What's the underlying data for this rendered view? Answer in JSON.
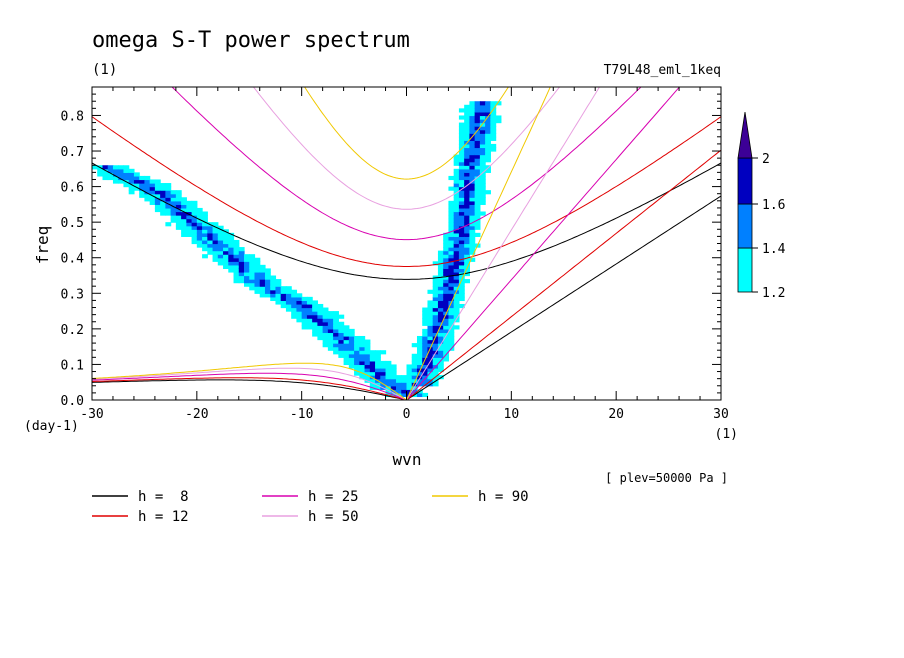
{
  "chart_data": {
    "type": "heatmap",
    "title": "omega S-T power spectrum",
    "subtitle": "(1)",
    "run_label": "T79L48_eml_1keq",
    "xlabel": "wvn",
    "x_unit": "(1)",
    "ylabel": "freq",
    "y_unit": "(day-1)",
    "level_note": "[ plev=50000 Pa ]",
    "xlim": [
      -30,
      30
    ],
    "ylim": [
      0,
      0.88
    ],
    "x_ticks": [
      "-30",
      "-20",
      "-10",
      "0",
      "10",
      "20",
      "30"
    ],
    "y_ticks": [
      "0.0",
      "0.1",
      "0.2",
      "0.3",
      "0.4",
      "0.5",
      "0.6",
      "0.7",
      "0.8"
    ],
    "colorbar": {
      "levels": [
        "1.2",
        "1.4",
        "1.6",
        "2"
      ],
      "colors": [
        "#00ffff",
        "#0080ff",
        "#0000c0",
        "#3c0096"
      ]
    },
    "dispersion_curves": [
      {
        "name": "h =  8",
        "h": 8,
        "color": "#000000"
      },
      {
        "name": "h = 12",
        "h": 12,
        "color": "#e00000"
      },
      {
        "name": "h = 25",
        "h": 25,
        "color": "#d800b0"
      },
      {
        "name": "h = 50",
        "h": 50,
        "color": "#e8a0e0"
      },
      {
        "name": "h = 90",
        "h": 90,
        "color": "#f0c800"
      }
    ],
    "westward_band": {
      "description_points": [
        [
          -30,
          0.66
        ],
        [
          -25,
          0.6
        ],
        [
          -20,
          0.48
        ],
        [
          -17,
          0.4
        ],
        [
          -14,
          0.32
        ],
        [
          -10,
          0.26
        ],
        [
          -7,
          0.18
        ],
        [
          -4,
          0.1
        ],
        [
          -2,
          0.04
        ],
        [
          0,
          0.01
        ]
      ]
    },
    "eastward_band": {
      "description_points": [
        [
          1,
          0.04
        ],
        [
          2,
          0.12
        ],
        [
          3,
          0.22
        ],
        [
          4,
          0.34
        ],
        [
          5,
          0.46
        ],
        [
          5.5,
          0.56
        ],
        [
          6,
          0.66
        ],
        [
          6.5,
          0.76
        ],
        [
          7,
          0.84
        ]
      ]
    }
  }
}
